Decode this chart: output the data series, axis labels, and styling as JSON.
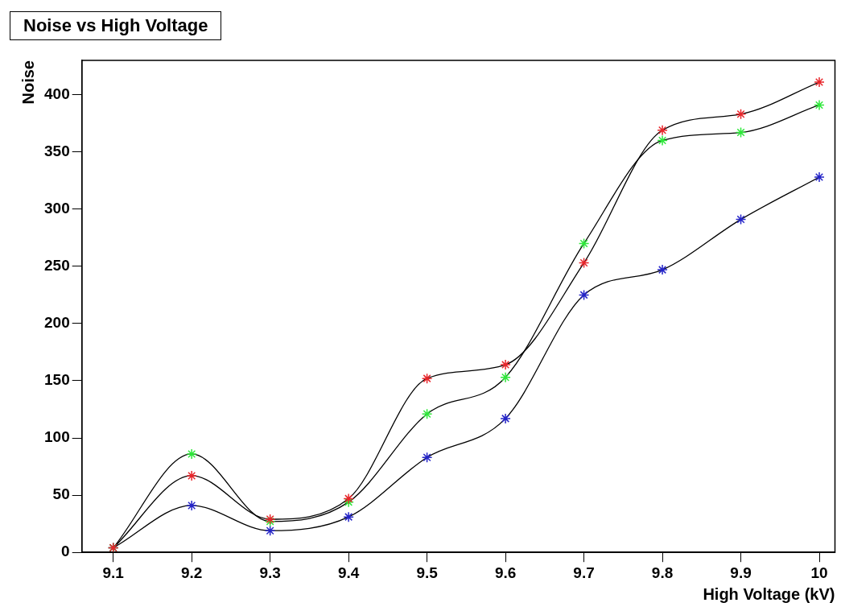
{
  "chart_data": {
    "type": "line",
    "title": "Noise vs High Voltage",
    "xlabel": "High Voltage (kV)",
    "ylabel": "Noise",
    "x": [
      9.1,
      9.2,
      9.3,
      9.4,
      9.5,
      9.6,
      9.7,
      9.8,
      9.9,
      10
    ],
    "series": [
      {
        "color": "#e8262b",
        "values": [
          4,
          67,
          29,
          47,
          152,
          164,
          253,
          369,
          383,
          411
        ]
      },
      {
        "color": "#2ee83a",
        "values": [
          4,
          86,
          27,
          44,
          121,
          153,
          270,
          360,
          367,
          391
        ]
      },
      {
        "color": "#2424c8",
        "values": [
          4,
          41,
          19,
          31,
          83,
          117,
          225,
          247,
          291,
          328
        ]
      }
    ],
    "xlim": [
      9.06,
      10.02
    ],
    "xticks": [
      9.1,
      9.2,
      9.3,
      9.4,
      9.5,
      9.6,
      9.7,
      9.8,
      9.9,
      10
    ],
    "ylim": [
      0,
      430
    ],
    "yticks": [
      0,
      50,
      100,
      150,
      200,
      250,
      300,
      350,
      400
    ],
    "marker": "cross",
    "line_style": "solid",
    "grid": false,
    "legend": false
  }
}
